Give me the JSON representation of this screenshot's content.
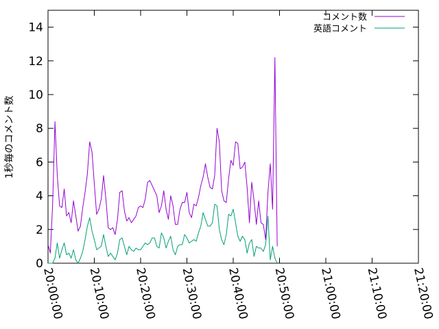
{
  "chart_data": {
    "type": "line",
    "title": "",
    "xlabel": "",
    "ylabel": "1秒毎のコメント数",
    "xlim": [
      "20:00:00",
      "21:20:00"
    ],
    "ylim": [
      0,
      15
    ],
    "grid": false,
    "legend_position": "top-right",
    "x_ticks": [
      "20:00:00",
      "20:10:00",
      "20:20:00",
      "20:30:00",
      "20:40:00",
      "20:50:00",
      "21:00:00",
      "21:10:00",
      "21:20:00"
    ],
    "y_ticks": [
      0,
      2,
      4,
      6,
      8,
      10,
      12,
      14
    ],
    "x_step_minutes": 0.5,
    "x_start": "20:00:00",
    "series": [
      {
        "name": "コメント数",
        "color": "#9400d3",
        "values": [
          1.1,
          0.6,
          3.5,
          8.4,
          5.2,
          3.4,
          3.3,
          4.4,
          2.8,
          3.0,
          2.4,
          3.7,
          2.8,
          1.9,
          2.2,
          3.3,
          4.2,
          5.3,
          7.2,
          6.6,
          4.7,
          2.9,
          3.2,
          3.8,
          5.2,
          3.8,
          2.1,
          2.0,
          2.1,
          1.7,
          2.6,
          4.2,
          4.3,
          3.1,
          2.5,
          2.7,
          2.4,
          2.6,
          2.8,
          3.3,
          3.4,
          3.3,
          3.8,
          4.8,
          4.9,
          4.6,
          4.3,
          4.0,
          3.0,
          3.4,
          4.3,
          3.2,
          2.6,
          4.0,
          3.4,
          2.3,
          2.3,
          3.2,
          3.6,
          3.6,
          4.2,
          3.0,
          2.7,
          3.5,
          3.4,
          3.9,
          4.6,
          5.1,
          5.9,
          5.1,
          4.5,
          4.4,
          5.2,
          8.0,
          7.2,
          4.3,
          3.7,
          3.6,
          5.0,
          6.1,
          5.8,
          7.2,
          7.1,
          5.6,
          5.7,
          6.0,
          4.5,
          2.4,
          4.8,
          3.7,
          2.3,
          3.7,
          2.4,
          2.3,
          1.4,
          4.2,
          5.9,
          3.2,
          12.2,
          1.0
        ]
      },
      {
        "name": "英語コメント",
        "color": "#009e73",
        "values": [
          0.0,
          0.0,
          0.0,
          0.3,
          1.2,
          0.3,
          0.8,
          1.2,
          0.5,
          0.6,
          0.3,
          0.8,
          0.2,
          0.0,
          0.3,
          0.7,
          1.4,
          2.2,
          2.7,
          1.9,
          1.4,
          0.8,
          0.9,
          1.0,
          1.7,
          1.0,
          0.4,
          0.6,
          0.4,
          0.2,
          0.6,
          1.4,
          1.5,
          1.0,
          0.5,
          1.0,
          0.8,
          0.7,
          0.9,
          0.8,
          0.8,
          1.0,
          1.2,
          1.1,
          1.2,
          1.5,
          1.5,
          1.0,
          0.9,
          1.8,
          1.5,
          0.9,
          1.3,
          1.6,
          0.8,
          0.5,
          1.0,
          1.1,
          1.1,
          1.7,
          1.5,
          1.2,
          1.3,
          1.4,
          1.3,
          1.8,
          2.2,
          3.0,
          2.6,
          2.2,
          2.2,
          2.4,
          3.5,
          3.4,
          2.0,
          1.4,
          1.1,
          1.7,
          2.9,
          2.8,
          3.2,
          2.4,
          1.6,
          1.3,
          1.6,
          1.4,
          0.6,
          1.2,
          1.4,
          0.4,
          1.0,
          0.9,
          0.9,
          0.7,
          1.1,
          2.8,
          0.2,
          1.0,
          0.3,
          0.0
        ]
      }
    ]
  }
}
